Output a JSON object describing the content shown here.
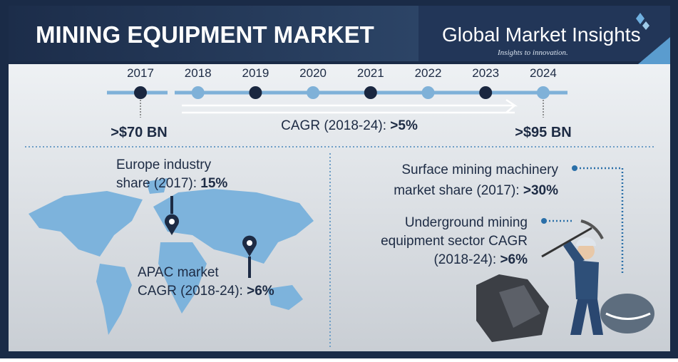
{
  "header": {
    "title": "MINING EQUIPMENT MARKET",
    "brand": "Global Market Insights",
    "tagline": "Insights to innovation."
  },
  "timeline": {
    "years": [
      "2017",
      "2018",
      "2019",
      "2020",
      "2021",
      "2022",
      "2023",
      "2024"
    ],
    "start_value": ">$70 BN",
    "end_value": ">$95 BN",
    "cagr_label": "CAGR (2018-24):",
    "cagr_value": ">5%"
  },
  "europe": {
    "lines": [
      "Europe industry",
      "share (2017):"
    ],
    "value": "15%"
  },
  "apac": {
    "lines": [
      "APAC market",
      "CAGR (2018-24):"
    ],
    "value": ">6%"
  },
  "surface": {
    "lines": [
      "Surface mining machinery",
      "market share (2017):"
    ],
    "value": ">30%"
  },
  "underground": {
    "lines": [
      "Underground mining",
      "equipment sector CAGR",
      "(2018-24):"
    ],
    "value": ">6%"
  }
}
